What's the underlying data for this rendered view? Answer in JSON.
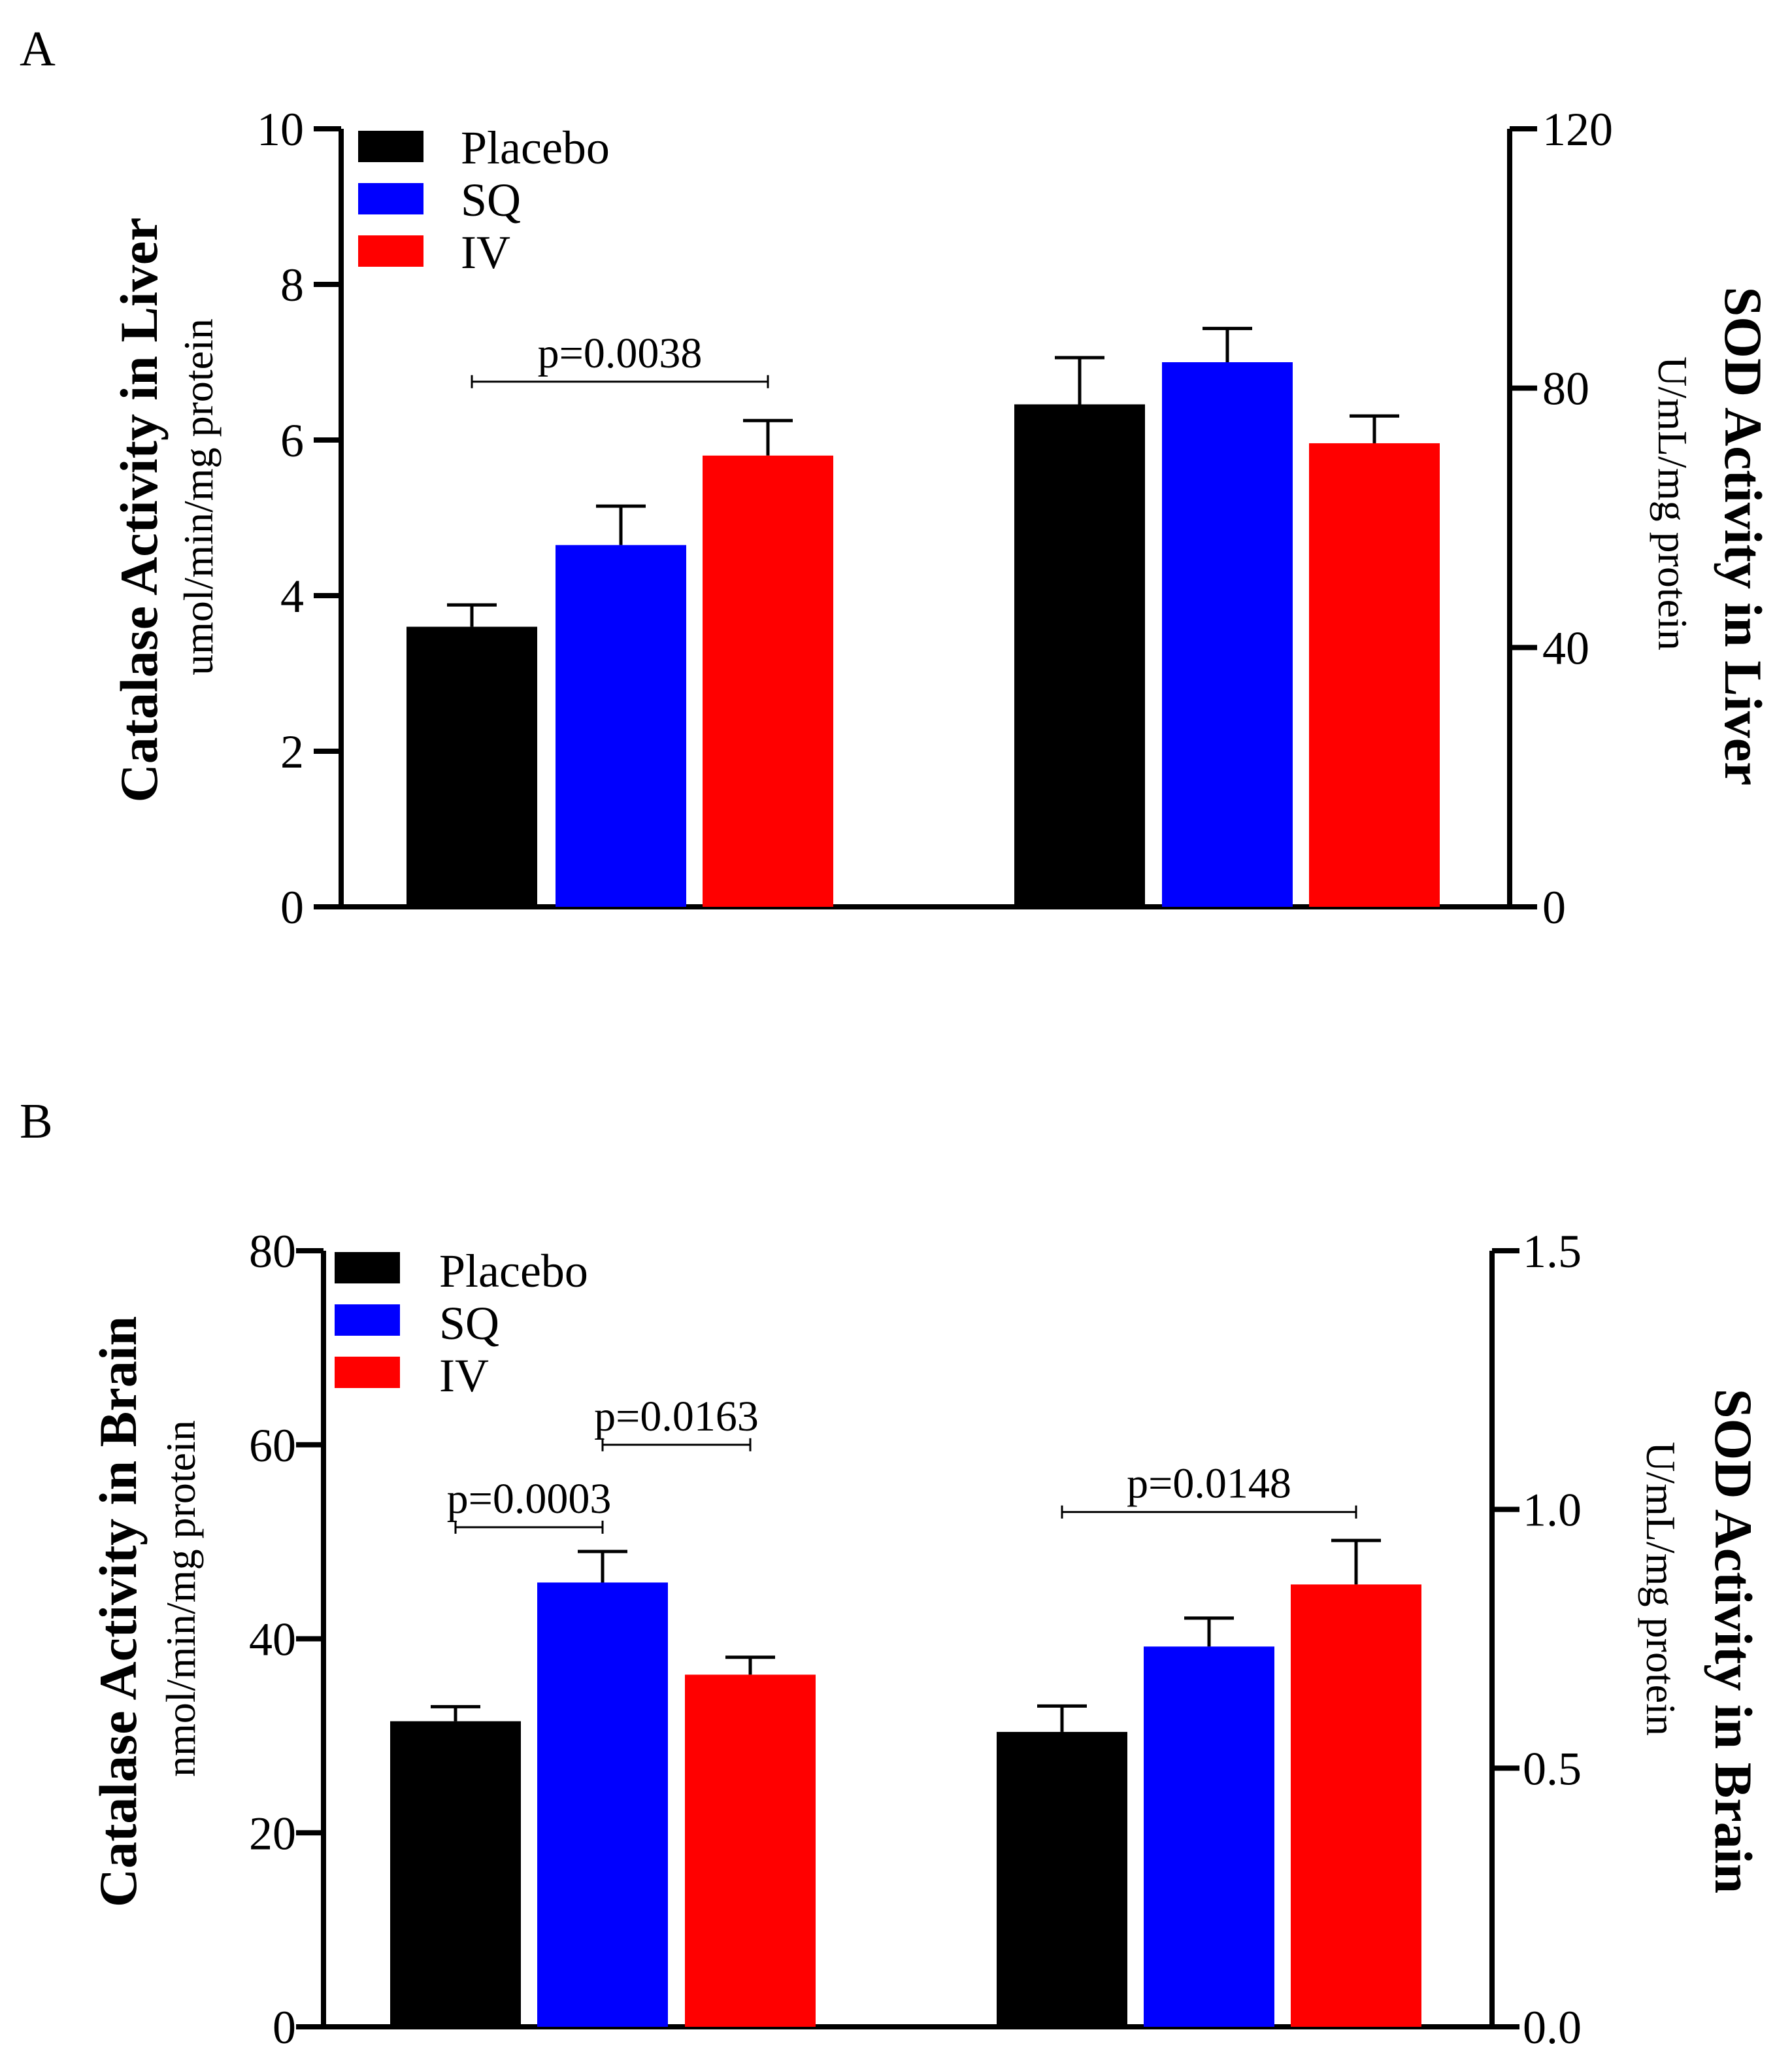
{
  "colors": {
    "placebo": "#000000",
    "sq": "#0000ff",
    "iv": "#ff0000",
    "axis": "#000000"
  },
  "chart_data": [
    {
      "panel": "A",
      "type": "bar",
      "legend": [
        "Placebo",
        "SQ",
        "IV"
      ],
      "legend_position": "top-left",
      "left_axis": {
        "title": "Catalase Activity in Liver",
        "unit": "umol/min/mg protein",
        "ylim": [
          0,
          10
        ],
        "ticks": [
          "0",
          "2",
          "4",
          "6",
          "8",
          "10"
        ],
        "tick_values": [
          0,
          2,
          4,
          6,
          8,
          10
        ]
      },
      "right_axis": {
        "title": "SOD Activity in Liver",
        "unit": "U/mL/mg protein",
        "ylim": [
          0,
          120
        ],
        "ticks": [
          "0",
          "40",
          "80",
          "120"
        ],
        "tick_values": [
          0,
          40,
          80,
          120
        ]
      },
      "groups": [
        {
          "axis": "left",
          "bars": [
            {
              "series": "Placebo",
              "value": 3.6,
              "error": 0.28
            },
            {
              "series": "SQ",
              "value": 4.65,
              "error": 0.5
            },
            {
              "series": "IV",
              "value": 5.8,
              "error": 0.45
            }
          ],
          "brackets": [
            {
              "from": 0,
              "to": 2,
              "label": "p=0.0038",
              "y": 6.75
            }
          ]
        },
        {
          "axis": "right",
          "bars": [
            {
              "series": "Placebo",
              "value": 77.5,
              "error": 7.2
            },
            {
              "series": "SQ",
              "value": 84,
              "error": 5.2
            },
            {
              "series": "IV",
              "value": 71.5,
              "error": 4.2
            }
          ],
          "brackets": []
        }
      ],
      "grid": false
    },
    {
      "panel": "B",
      "type": "bar",
      "legend": [
        "Placebo",
        "SQ",
        "IV"
      ],
      "legend_position": "top-left",
      "left_axis": {
        "title": "Catalase Activity in Brain",
        "unit": "nmol/min/mg protein",
        "ylim": [
          0,
          80
        ],
        "ticks": [
          "0",
          "20",
          "40",
          "60",
          "80"
        ],
        "tick_values": [
          0,
          20,
          40,
          60,
          80
        ]
      },
      "right_axis": {
        "title": "SOD Activity in Brain",
        "unit": "U/mL/mg protein",
        "ylim": [
          0.0,
          1.5
        ],
        "ticks": [
          "0.0",
          "0.5",
          "1.0",
          "1.5"
        ],
        "tick_values": [
          0.0,
          0.5,
          1.0,
          1.5
        ]
      },
      "groups": [
        {
          "axis": "left",
          "bars": [
            {
              "series": "Placebo",
              "value": 31.5,
              "error": 1.5
            },
            {
              "series": "SQ",
              "value": 45.8,
              "error": 3.2
            },
            {
              "series": "IV",
              "value": 36.3,
              "error": 1.8
            }
          ],
          "brackets": [
            {
              "from": 0,
              "to": 1,
              "label": "p=0.0003",
              "y": 51.5
            },
            {
              "from": 1,
              "to": 2,
              "label": "p=0.0163",
              "y": 60.0
            }
          ]
        },
        {
          "axis": "right",
          "bars": [
            {
              "series": "Placebo",
              "value": 0.57,
              "error": 0.05
            },
            {
              "series": "SQ",
              "value": 0.735,
              "error": 0.055
            },
            {
              "series": "IV",
              "value": 0.855,
              "error": 0.085
            }
          ],
          "brackets": [
            {
              "from": 0,
              "to": 2,
              "label": "p=0.0148",
              "y": 0.995
            }
          ]
        }
      ],
      "grid": false
    }
  ]
}
